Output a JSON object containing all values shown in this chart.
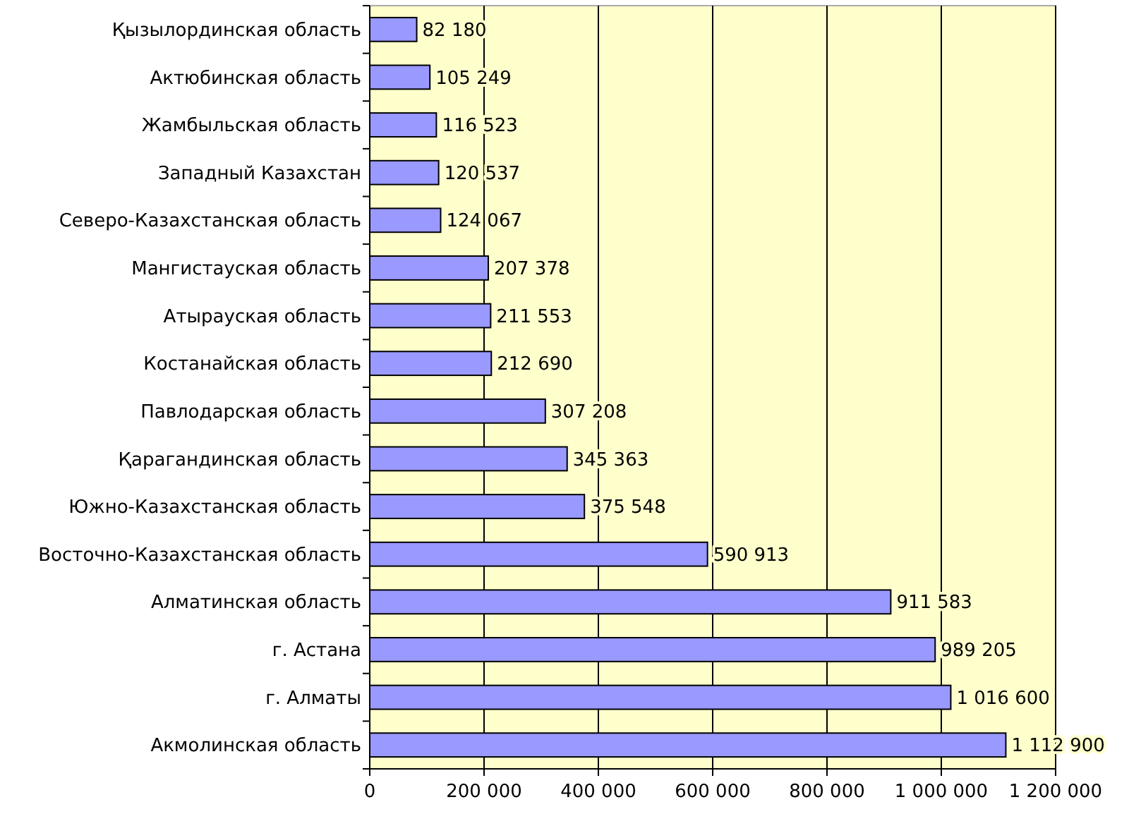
{
  "chart_data": {
    "type": "bar",
    "orientation": "horizontal",
    "categories": [
      "Қызылординская область",
      "Актюбинская область",
      "Жамбыльская область",
      "Западный Казахстан",
      "Северо-Казахстанская область",
      "Мангистауская область",
      "Атырауская область",
      "Костанайская область",
      "Павлодарская область",
      "Қарагандинская область",
      "Южно-Казахстанская область",
      "Восточно-Казахстанская область",
      "Алматинская область",
      "г. Астана",
      "г. Алматы",
      "Акмолинская область"
    ],
    "values": [
      82180,
      105249,
      116523,
      120537,
      124067,
      207378,
      211553,
      212690,
      307208,
      345363,
      375548,
      590913,
      911583,
      989205,
      1016600,
      1112900
    ],
    "color": "#9999ff",
    "data_labels": true,
    "grid": "x",
    "xlim": [
      0,
      1200000
    ],
    "xticks": [
      {
        "value": 0,
        "label": "0"
      },
      {
        "value": 200000,
        "label": "200 000"
      },
      {
        "value": 400000,
        "label": "400 000"
      },
      {
        "value": 600000,
        "label": "600 000"
      },
      {
        "value": 800000,
        "label": "800 000"
      },
      {
        "value": 1000000,
        "label": "1 000 000"
      },
      {
        "value": 1200000,
        "label": "1 200 000"
      }
    ]
  }
}
